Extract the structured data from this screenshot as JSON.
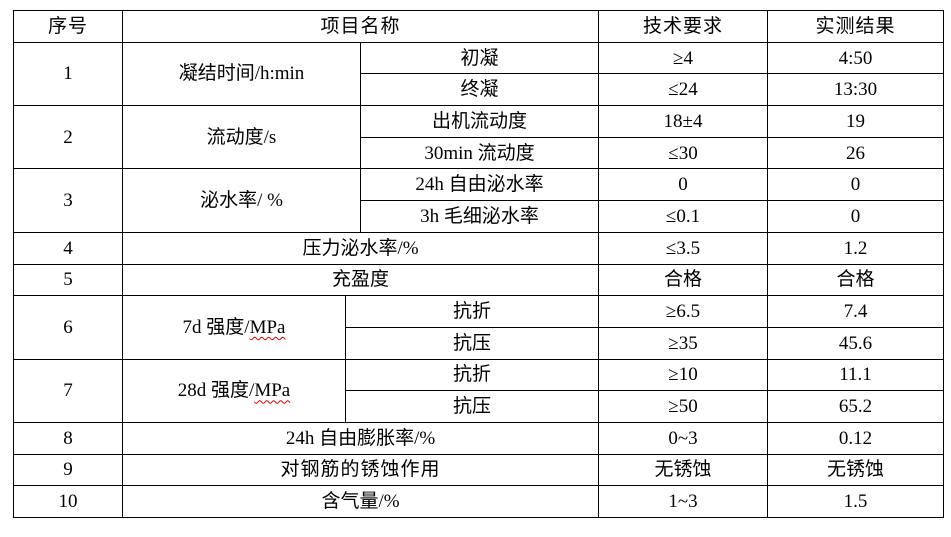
{
  "header": {
    "no": "序号",
    "item": "项目名称",
    "requirement": "技术要求",
    "result": "实测结果"
  },
  "rows": [
    {
      "no": "1",
      "item": "凝结时间/h:min",
      "sub": [
        {
          "name": "初凝",
          "requirement": "≥4",
          "result": "4:50"
        },
        {
          "name": "终凝",
          "requirement": "≤24",
          "result": "13:30"
        }
      ]
    },
    {
      "no": "2",
      "item": "流动度/s",
      "sub": [
        {
          "name": "出机流动度",
          "requirement": "18±4",
          "result": "19"
        },
        {
          "name": "30min 流动度",
          "requirement": "≤30",
          "result": "26"
        }
      ]
    },
    {
      "no": "3",
      "item": "泌水率/ %",
      "sub": [
        {
          "name": "24h 自由泌水率",
          "requirement": "0",
          "result": "0"
        },
        {
          "name": "3h 毛细泌水率",
          "requirement": "≤0.1",
          "result": "0"
        }
      ]
    },
    {
      "no": "4",
      "item": "压力泌水率/%",
      "requirement": "≤3.5",
      "result": "1.2"
    },
    {
      "no": "5",
      "item": "充盈度",
      "requirement": "合格",
      "result": "合格"
    },
    {
      "no": "6",
      "item_prefix": "7d 强度/",
      "item_unit": "MPa",
      "sub": [
        {
          "name": "抗折",
          "requirement": "≥6.5",
          "result": "7.4"
        },
        {
          "name": "抗压",
          "requirement": "≥35",
          "result": "45.6"
        }
      ]
    },
    {
      "no": "7",
      "item_prefix": "28d 强度/",
      "item_unit": "MPa",
      "sub": [
        {
          "name": "抗折",
          "requirement": "≥10",
          "result": "11.1"
        },
        {
          "name": "抗压",
          "requirement": "≥50",
          "result": "65.2"
        }
      ]
    },
    {
      "no": "8",
      "item": "24h 自由膨胀率/%",
      "requirement": "0~3",
      "result": "0.12"
    },
    {
      "no": "9",
      "item": "对钢筋的锈蚀作用",
      "requirement": "无锈蚀",
      "result": "无锈蚀"
    },
    {
      "no": "10",
      "item": "含气量/%",
      "requirement": "1~3",
      "result": "1.5"
    }
  ]
}
